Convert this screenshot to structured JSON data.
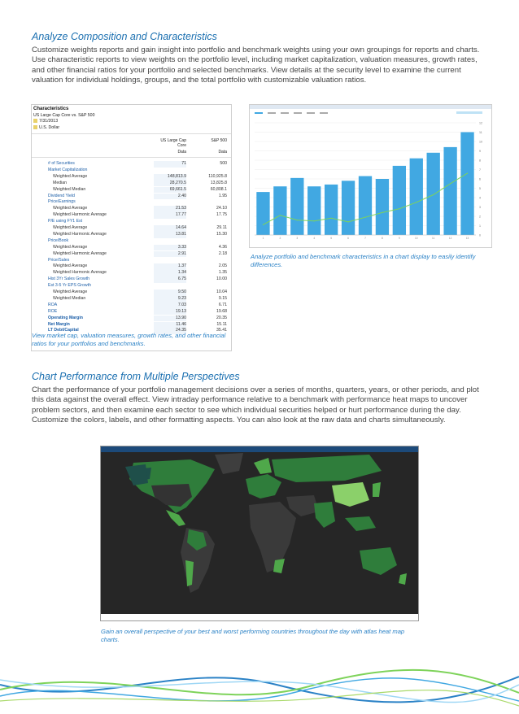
{
  "section1": {
    "heading": "Analyze Composition and Characteristics",
    "body": "Customize weights reports and gain insight into portfolio and benchmark weights using your own groupings for reports and charts. Use characteristic reports to view weights on the portfolio level, including market capitalization, valuation measures, growth rates, and other financial ratios for your portfolio and selected benchmarks. View details at the security level to examine the current valuation for individual holdings, groups, and the total portfolio with customizable valuation ratios.",
    "table": {
      "title": "Characteristics",
      "subtitle": "US Large Cap Core vs. S&P 500",
      "date": "7/31/2013",
      "currency": "U.S. Dollar",
      "col1_header": "US Large Cap Core",
      "col2_header": "S&P 500",
      "col_sub": "Data",
      "rows": [
        {
          "label": "# of Securities",
          "v1": "71",
          "v2": "500",
          "style": "blue",
          "indent": 0
        },
        {
          "label": "Market Capitalization",
          "v1": "",
          "v2": "",
          "style": "blue",
          "indent": 0
        },
        {
          "label": "Weighted Average",
          "v1": "148,813.9",
          "v2": "110,925.8",
          "style": "",
          "indent": 1
        },
        {
          "label": "Median",
          "v1": "28,270.5",
          "v2": "13,825.8",
          "style": "",
          "indent": 1
        },
        {
          "label": "Weighted Median",
          "v1": "69,661.5",
          "v2": "60,808.1",
          "style": "",
          "indent": 1
        },
        {
          "label": "Dividend Yield",
          "v1": "2.40",
          "v2": "1.95",
          "style": "blue",
          "indent": 0
        },
        {
          "label": "Price/Earnings",
          "v1": "",
          "v2": "",
          "style": "blue",
          "indent": 0
        },
        {
          "label": "Weighted Average",
          "v1": "21.53",
          "v2": "24.10",
          "style": "",
          "indent": 1
        },
        {
          "label": "Weighted Harmonic Average",
          "v1": "17.77",
          "v2": "17.75",
          "style": "",
          "indent": 1
        },
        {
          "label": "P/E using FY1 Est",
          "v1": "",
          "v2": "",
          "style": "blue",
          "indent": 0
        },
        {
          "label": "Weighted Average",
          "v1": "14.64",
          "v2": "29.11",
          "style": "",
          "indent": 1
        },
        {
          "label": "Weighted Harmonic Average",
          "v1": "13.81",
          "v2": "15.30",
          "style": "",
          "indent": 1
        },
        {
          "label": "Price/Book",
          "v1": "",
          "v2": "",
          "style": "blue",
          "indent": 0
        },
        {
          "label": "Weighted Average",
          "v1": "3.33",
          "v2": "4.36",
          "style": "",
          "indent": 1
        },
        {
          "label": "Weighted Harmonic Average",
          "v1": "2.91",
          "v2": "2.18",
          "style": "",
          "indent": 1
        },
        {
          "label": "Price/Sales",
          "v1": "",
          "v2": "",
          "style": "blue",
          "indent": 0
        },
        {
          "label": "Weighted Average",
          "v1": "1.37",
          "v2": "2.05",
          "style": "",
          "indent": 1
        },
        {
          "label": "Weighted Harmonic Average",
          "v1": "1.34",
          "v2": "1.35",
          "style": "",
          "indent": 1
        },
        {
          "label": "Hist 3Yr Sales Growth",
          "v1": "6.75",
          "v2": "10.00",
          "style": "blue",
          "indent": 0
        },
        {
          "label": "Est 3-5 Yr EPS Growth",
          "v1": "",
          "v2": "",
          "style": "blue",
          "indent": 0
        },
        {
          "label": "Weighted Average",
          "v1": "9.50",
          "v2": "10.04",
          "style": "",
          "indent": 1
        },
        {
          "label": "Weighted Median",
          "v1": "9.23",
          "v2": "9.15",
          "style": "",
          "indent": 1
        },
        {
          "label": "ROA",
          "v1": "7.03",
          "v2": "6.71",
          "style": "blue",
          "indent": 0
        },
        {
          "label": "ROE",
          "v1": "19.13",
          "v2": "19.68",
          "style": "blue",
          "indent": 0
        },
        {
          "label": "Operating Margin",
          "v1": "13.90",
          "v2": "20.35",
          "style": "bluebold",
          "indent": 0
        },
        {
          "label": "Net Margin",
          "v1": "11.46",
          "v2": "15.11",
          "style": "bluebold",
          "indent": 0
        },
        {
          "label": "LT Debt/Capital",
          "v1": "24.35",
          "v2": "35.41",
          "style": "bluebold",
          "indent": 0
        }
      ]
    },
    "table_caption": "View market cap, valuation measures, growth rates, and other financial ratios for your portfolios and benchmarks.",
    "chart_caption": "Analyze portfolio and benchmark characteristics in a chart display to easily identify differences."
  },
  "chart_data": {
    "type": "bar",
    "categories": [
      "1",
      "2",
      "3",
      "4",
      "5",
      "6",
      "7",
      "8",
      "9",
      "10",
      "11",
      "12",
      "13"
    ],
    "series": [
      {
        "values": [
          4.6,
          5.2,
          6.1,
          5.2,
          5.4,
          5.8,
          6.3,
          6.0,
          7.4,
          8.2,
          8.8,
          9.4,
          11.0
        ]
      },
      {
        "values": [
          1.1,
          2.1,
          1.6,
          1.5,
          1.8,
          1.4,
          1.9,
          2.4,
          2.8,
          3.5,
          4.3,
          5.5,
          6.6
        ]
      }
    ],
    "ylim": [
      0,
      12
    ],
    "yticks": [
      "0",
      "1",
      "2",
      "3",
      "4",
      "5",
      "6",
      "7",
      "8",
      "9",
      "10",
      "11",
      "12"
    ],
    "colors": {
      "bar": "#41a8e2",
      "line": "#7ed35a"
    },
    "legend_items": [
      "—",
      "—",
      "—",
      "—",
      "—",
      "—"
    ]
  },
  "section2": {
    "heading": "Chart Performance from Multiple Perspectives",
    "body": "Chart the performance of your portfolio management decisions over a series of months, quarters, years, or other periods, and plot this data against the overall effect. View intraday performance relative to a benchmark with performance heat maps to uncover problem sectors, and then examine each sector to see which individual securities helped or hurt performance during the day. Customize the colors, labels, and other formatting aspects. You can also look at the raw data and charts simultaneously.",
    "map_caption": "Gain an overall perspective of your best and worst performing countries throughout the day with atlas heat map charts.",
    "map_colors": {
      "ocean": "#262626",
      "dark": "#3a3a3a",
      "mid": "#2e7d3a",
      "light": "#4fa84a",
      "bright": "#8bd06a",
      "teal": "#1f4f4a"
    }
  }
}
